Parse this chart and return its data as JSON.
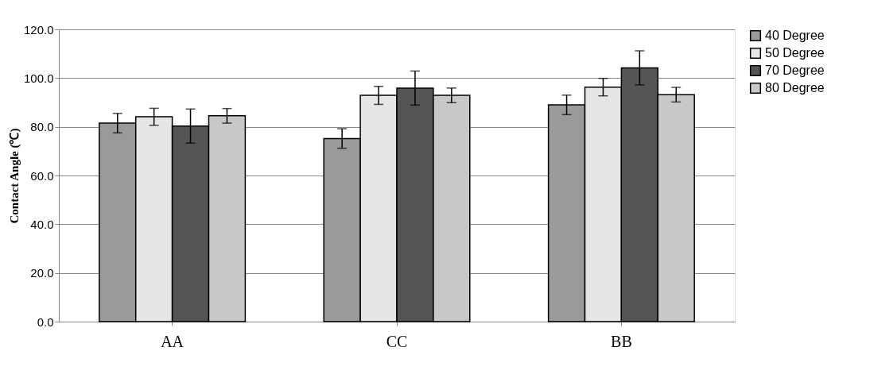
{
  "chart_data": {
    "type": "bar",
    "ylabel": "Contact Angle (℃)",
    "categories": [
      "AA",
      "CC",
      "BB"
    ],
    "series": [
      {
        "name": "40 Degree",
        "color": "#9a9a9a",
        "values": [
          81.5,
          75.2,
          89.0
        ],
        "errors": [
          4,
          4,
          4
        ]
      },
      {
        "name": "50 Degree",
        "color": "#e6e6e6",
        "values": [
          84.1,
          92.9,
          96.3
        ],
        "errors": [
          3.5,
          3.7,
          3.6
        ]
      },
      {
        "name": "70 Degree",
        "color": "#555555",
        "values": [
          80.3,
          95.9,
          104.2
        ],
        "errors": [
          7,
          7,
          7
        ]
      },
      {
        "name": "80 Degree",
        "color": "#c8c8c8",
        "values": [
          84.5,
          92.9,
          93.2
        ],
        "errors": [
          3,
          3,
          3
        ]
      }
    ],
    "ylim": [
      0,
      120
    ],
    "yticks": [
      {
        "value": 0,
        "label": "0.0"
      },
      {
        "value": 20,
        "label": "20.0"
      },
      {
        "value": 40,
        "label": "40.0"
      },
      {
        "value": 60,
        "label": "60.0"
      },
      {
        "value": 80,
        "label": "80.0"
      },
      {
        "value": 100,
        "label": "100.0"
      },
      {
        "value": 120,
        "label": "120.0"
      }
    ],
    "grid": "y",
    "legend": "right"
  }
}
